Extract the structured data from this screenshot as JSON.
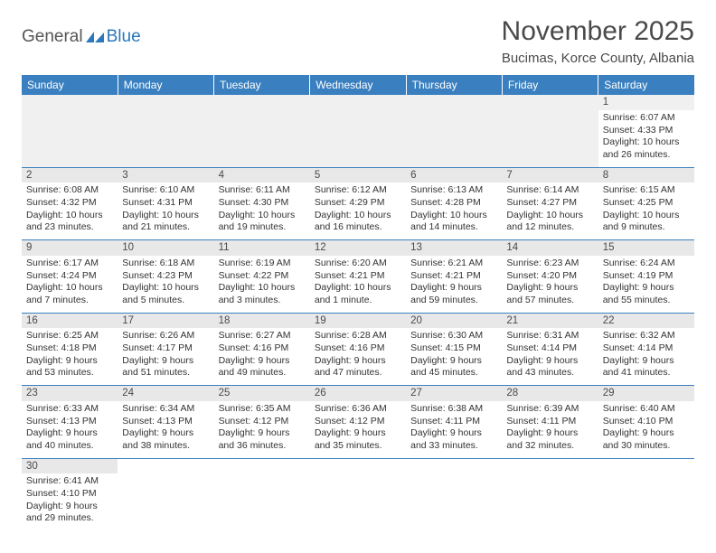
{
  "logo": {
    "text1": "General",
    "text2": "Blue"
  },
  "title": "November 2025",
  "subtitle": "Bucimas, Korce County, Albania",
  "colors": {
    "header_bg": "#3a80c0",
    "header_text": "#ffffff",
    "grid_border": "#3a80c0",
    "daynum_bg": "#e8e8e8",
    "text": "#333333",
    "title_color": "#4a4a4a",
    "logo_blue": "#2b78bc",
    "logo_gray": "#555555"
  },
  "weekdays": [
    "Sunday",
    "Monday",
    "Tuesday",
    "Wednesday",
    "Thursday",
    "Friday",
    "Saturday"
  ],
  "weeks": [
    [
      null,
      null,
      null,
      null,
      null,
      null,
      {
        "n": "1",
        "sunrise": "6:07 AM",
        "sunset": "4:33 PM",
        "daylight": "10 hours and 26 minutes."
      }
    ],
    [
      {
        "n": "2",
        "sunrise": "6:08 AM",
        "sunset": "4:32 PM",
        "daylight": "10 hours and 23 minutes."
      },
      {
        "n": "3",
        "sunrise": "6:10 AM",
        "sunset": "4:31 PM",
        "daylight": "10 hours and 21 minutes."
      },
      {
        "n": "4",
        "sunrise": "6:11 AM",
        "sunset": "4:30 PM",
        "daylight": "10 hours and 19 minutes."
      },
      {
        "n": "5",
        "sunrise": "6:12 AM",
        "sunset": "4:29 PM",
        "daylight": "10 hours and 16 minutes."
      },
      {
        "n": "6",
        "sunrise": "6:13 AM",
        "sunset": "4:28 PM",
        "daylight": "10 hours and 14 minutes."
      },
      {
        "n": "7",
        "sunrise": "6:14 AM",
        "sunset": "4:27 PM",
        "daylight": "10 hours and 12 minutes."
      },
      {
        "n": "8",
        "sunrise": "6:15 AM",
        "sunset": "4:25 PM",
        "daylight": "10 hours and 9 minutes."
      }
    ],
    [
      {
        "n": "9",
        "sunrise": "6:17 AM",
        "sunset": "4:24 PM",
        "daylight": "10 hours and 7 minutes."
      },
      {
        "n": "10",
        "sunrise": "6:18 AM",
        "sunset": "4:23 PM",
        "daylight": "10 hours and 5 minutes."
      },
      {
        "n": "11",
        "sunrise": "6:19 AM",
        "sunset": "4:22 PM",
        "daylight": "10 hours and 3 minutes."
      },
      {
        "n": "12",
        "sunrise": "6:20 AM",
        "sunset": "4:21 PM",
        "daylight": "10 hours and 1 minute."
      },
      {
        "n": "13",
        "sunrise": "6:21 AM",
        "sunset": "4:21 PM",
        "daylight": "9 hours and 59 minutes."
      },
      {
        "n": "14",
        "sunrise": "6:23 AM",
        "sunset": "4:20 PM",
        "daylight": "9 hours and 57 minutes."
      },
      {
        "n": "15",
        "sunrise": "6:24 AM",
        "sunset": "4:19 PM",
        "daylight": "9 hours and 55 minutes."
      }
    ],
    [
      {
        "n": "16",
        "sunrise": "6:25 AM",
        "sunset": "4:18 PM",
        "daylight": "9 hours and 53 minutes."
      },
      {
        "n": "17",
        "sunrise": "6:26 AM",
        "sunset": "4:17 PM",
        "daylight": "9 hours and 51 minutes."
      },
      {
        "n": "18",
        "sunrise": "6:27 AM",
        "sunset": "4:16 PM",
        "daylight": "9 hours and 49 minutes."
      },
      {
        "n": "19",
        "sunrise": "6:28 AM",
        "sunset": "4:16 PM",
        "daylight": "9 hours and 47 minutes."
      },
      {
        "n": "20",
        "sunrise": "6:30 AM",
        "sunset": "4:15 PM",
        "daylight": "9 hours and 45 minutes."
      },
      {
        "n": "21",
        "sunrise": "6:31 AM",
        "sunset": "4:14 PM",
        "daylight": "9 hours and 43 minutes."
      },
      {
        "n": "22",
        "sunrise": "6:32 AM",
        "sunset": "4:14 PM",
        "daylight": "9 hours and 41 minutes."
      }
    ],
    [
      {
        "n": "23",
        "sunrise": "6:33 AM",
        "sunset": "4:13 PM",
        "daylight": "9 hours and 40 minutes."
      },
      {
        "n": "24",
        "sunrise": "6:34 AM",
        "sunset": "4:13 PM",
        "daylight": "9 hours and 38 minutes."
      },
      {
        "n": "25",
        "sunrise": "6:35 AM",
        "sunset": "4:12 PM",
        "daylight": "9 hours and 36 minutes."
      },
      {
        "n": "26",
        "sunrise": "6:36 AM",
        "sunset": "4:12 PM",
        "daylight": "9 hours and 35 minutes."
      },
      {
        "n": "27",
        "sunrise": "6:38 AM",
        "sunset": "4:11 PM",
        "daylight": "9 hours and 33 minutes."
      },
      {
        "n": "28",
        "sunrise": "6:39 AM",
        "sunset": "4:11 PM",
        "daylight": "9 hours and 32 minutes."
      },
      {
        "n": "29",
        "sunrise": "6:40 AM",
        "sunset": "4:10 PM",
        "daylight": "9 hours and 30 minutes."
      }
    ],
    [
      {
        "n": "30",
        "sunrise": "6:41 AM",
        "sunset": "4:10 PM",
        "daylight": "9 hours and 29 minutes."
      },
      null,
      null,
      null,
      null,
      null,
      null
    ]
  ],
  "labels": {
    "sunrise": "Sunrise:",
    "sunset": "Sunset:",
    "daylight": "Daylight:"
  }
}
